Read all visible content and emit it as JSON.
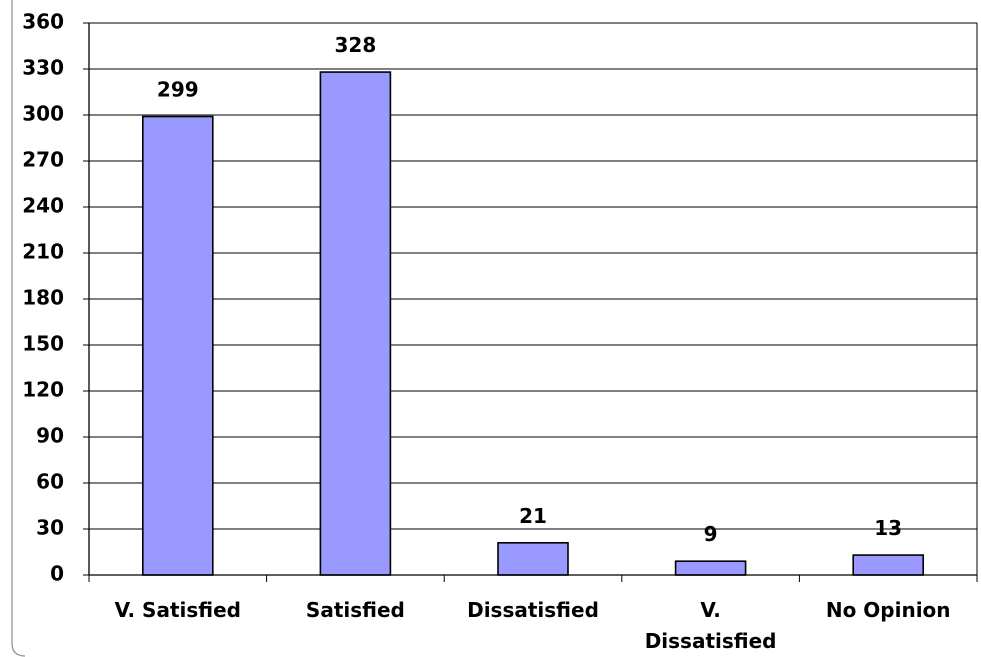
{
  "chart_data": {
    "type": "bar",
    "title": "",
    "xlabel": "",
    "ylabel": "",
    "categories": [
      "V. Satisfied",
      "Satisfied",
      "Dissatisfied",
      "V. Dissatisfied",
      "No Opinion"
    ],
    "category_lines": [
      [
        "V. Satisfied"
      ],
      [
        "Satisfied"
      ],
      [
        "Dissatisfied"
      ],
      [
        "V.",
        "Dissatisfied"
      ],
      [
        "No Opinion"
      ]
    ],
    "values": [
      299,
      328,
      21,
      9,
      13
    ],
    "ylim": [
      0,
      360
    ],
    "yticks": [
      0,
      30,
      60,
      90,
      120,
      150,
      180,
      210,
      240,
      270,
      300,
      330,
      360
    ],
    "grid": true,
    "legend": "none",
    "bar_color": "#9999ff"
  }
}
